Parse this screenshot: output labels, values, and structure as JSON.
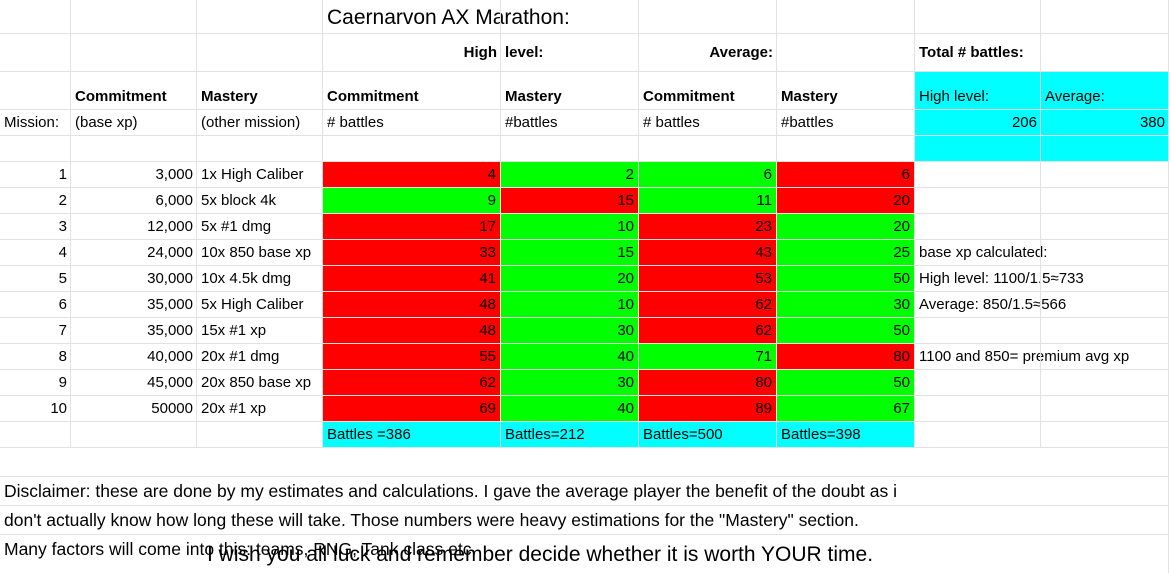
{
  "title": "Caernarvon AX Marathon:",
  "header": {
    "high": "High",
    "level": "level:",
    "average": "Average:",
    "total_battles": "Total # battles:"
  },
  "columns": {
    "commitment": "Commitment",
    "mastery": "Mastery",
    "mission": "Mission:",
    "base_xp": "(base xp)",
    "other_mission": "(other mission)",
    "num_battles": "# battles",
    "num_battles_nospace": "#battles",
    "high_level": "High level:",
    "average": "Average:"
  },
  "totals": {
    "high_level": "206",
    "average": "380"
  },
  "rows": [
    {
      "mission": "1",
      "base_xp": "3,000",
      "task": "1x High Caliber",
      "hc": "4",
      "hm": "2",
      "ac": "6",
      "am": "6"
    },
    {
      "mission": "2",
      "base_xp": "6,000",
      "task": "5x block 4k",
      "hc": "9",
      "hm": "15",
      "ac": "11",
      "am": "20"
    },
    {
      "mission": "3",
      "base_xp": "12,000",
      "task": "5x #1 dmg",
      "hc": "17",
      "hm": "10",
      "ac": "23",
      "am": "20"
    },
    {
      "mission": "4",
      "base_xp": "24,000",
      "task": "10x 850 base xp",
      "hc": "33",
      "hm": "15",
      "ac": "43",
      "am": "25"
    },
    {
      "mission": "5",
      "base_xp": "30,000",
      "task": "10x 4.5k dmg",
      "hc": "41",
      "hm": "20",
      "ac": "53",
      "am": "50"
    },
    {
      "mission": "6",
      "base_xp": "35,000",
      "task": "5x High Caliber",
      "hc": "48",
      "hm": "10",
      "ac": "62",
      "am": "30"
    },
    {
      "mission": "7",
      "base_xp": "35,000",
      "task": "15x #1 xp",
      "hc": "48",
      "hm": "30",
      "ac": "62",
      "am": "50"
    },
    {
      "mission": "8",
      "base_xp": "40,000",
      "task": "20x #1 dmg",
      "hc": "55",
      "hm": "40",
      "ac": "71",
      "am": "80"
    },
    {
      "mission": "9",
      "base_xp": "45,000",
      "task": "20x 850 base xp",
      "hc": "62",
      "hm": "30",
      "ac": "80",
      "am": "50"
    },
    {
      "mission": "10",
      "base_xp": "50000",
      "task": "20x #1 xp",
      "hc": "69",
      "hm": "40",
      "ac": "89",
      "am": "67"
    }
  ],
  "cell_colors": [
    [
      "red",
      "grn",
      "grn",
      "red"
    ],
    [
      "grn",
      "red",
      "grn",
      "red"
    ],
    [
      "red",
      "grn",
      "red",
      "grn"
    ],
    [
      "red",
      "grn",
      "red",
      "grn"
    ],
    [
      "red",
      "grn",
      "red",
      "grn"
    ],
    [
      "red",
      "grn",
      "red",
      "grn"
    ],
    [
      "red",
      "grn",
      "red",
      "grn"
    ],
    [
      "red",
      "grn",
      "grn",
      "red"
    ],
    [
      "red",
      "grn",
      "red",
      "grn"
    ],
    [
      "red",
      "grn",
      "red",
      "grn"
    ]
  ],
  "notes": [
    "base xp calculated:",
    "High level: 1100/1.5≈733",
    "Average: 850/1.5≈566",
    "",
    "1100 and 850= premium avg xp"
  ],
  "battle_totals": [
    "Battles =386",
    "Battles=212",
    "Battles=500",
    "Battles=398"
  ],
  "disclaimer": [
    "Disclaimer: these are done by my estimates and calculations. I gave the average player the benefit of the doubt as i",
    "don't actually know how long these will take. Those numbers were heavy estimations for the \"Mastery\" section.",
    "Many factors will come into this: teams, RNG, Tank class etc."
  ],
  "closing": "I wish you all luck and remember decide whether it is worth YOUR time.",
  "colors": {
    "red": "#ff0000",
    "green": "#00ff00",
    "cyan": "#00ffff",
    "grid": "#e2e2e2"
  }
}
